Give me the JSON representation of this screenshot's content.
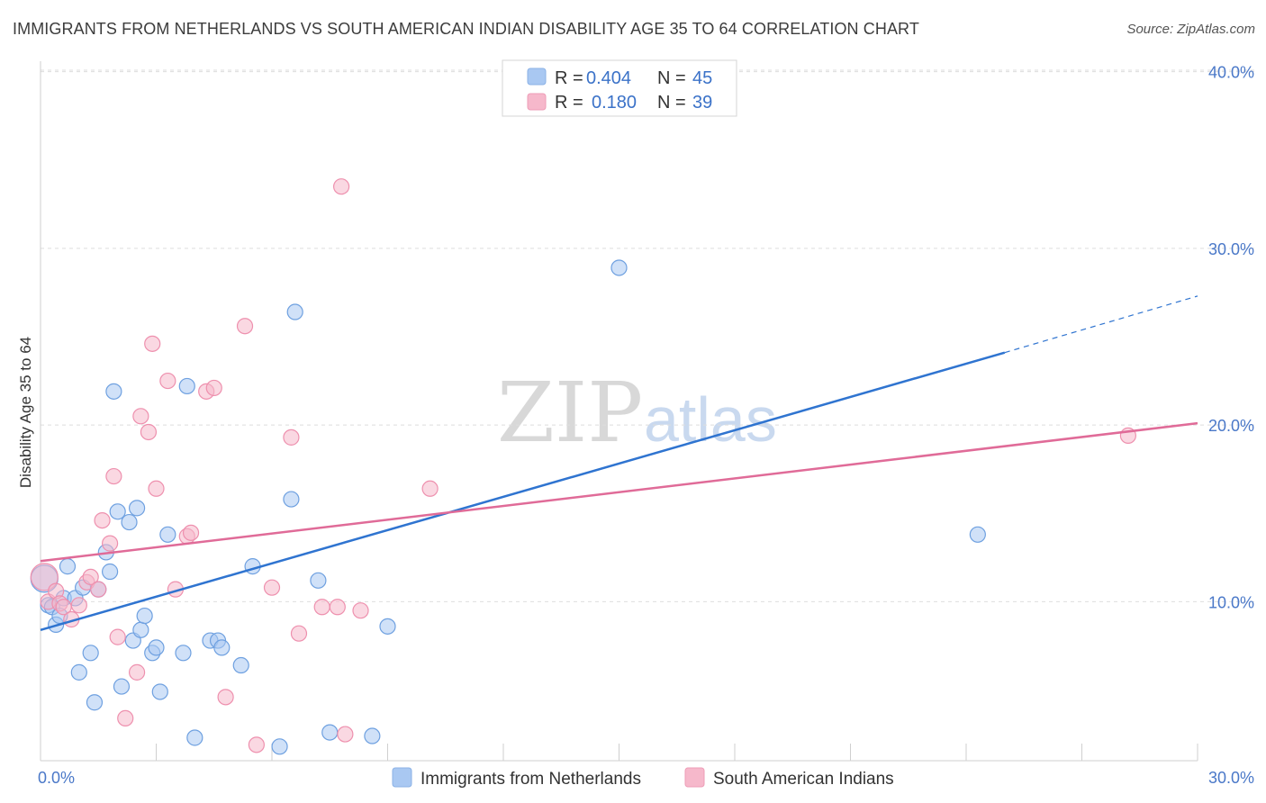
{
  "header": {
    "title": "IMMIGRANTS FROM NETHERLANDS VS SOUTH AMERICAN INDIAN DISABILITY AGE 35 TO 64 CORRELATION CHART",
    "source": "Source: ZipAtlas.com"
  },
  "watermark": {
    "zip": "ZIP",
    "atlas": "atlas"
  },
  "legend": {
    "rows": [
      {
        "r_label": "R =",
        "r_value": "0.404",
        "n_label": "N =",
        "n_value": "45",
        "color": "#a9c8f2"
      },
      {
        "r_label": "R =",
        "r_value": "0.180",
        "n_label": "N =",
        "n_value": "39",
        "color": "#f6b8cb"
      }
    ]
  },
  "bottom_legend": {
    "items": [
      {
        "label": "Immigrants from Netherlands",
        "color": "#a9c8f2"
      },
      {
        "label": "South American Indians",
        "color": "#f6b8cb"
      }
    ]
  },
  "chart_data": {
    "type": "scatter",
    "title": "IMMIGRANTS FROM NETHERLANDS VS SOUTH AMERICAN INDIAN DISABILITY AGE 35 TO 64 CORRELATION CHART",
    "xlabel": "",
    "ylabel": "Disability Age 35 to 64",
    "xlim": [
      0,
      30
    ],
    "ylim": [
      1.0,
      41.0
    ],
    "x_tick_labels": [
      "0.0%",
      "30.0%"
    ],
    "y_ticks": [
      10,
      20,
      30,
      40
    ],
    "y_tick_labels": [
      "10.0%",
      "20.0%",
      "30.0%",
      "40.0%"
    ],
    "grid": true,
    "legend_position": "top-center",
    "series": [
      {
        "name": "Immigrants from Netherlands",
        "color": "#6ea0e0",
        "fill": "#a9c8f2",
        "trend": {
          "x0": 0,
          "y0": 8.4,
          "x1": 25.0,
          "y1": 24.1,
          "dash_to_x": 30,
          "dash_to_y": 27.3,
          "color": "#2f74d0"
        },
        "points": [
          [
            0.1,
            11.3
          ],
          [
            0.2,
            9.8
          ],
          [
            0.3,
            9.7
          ],
          [
            0.4,
            8.7
          ],
          [
            0.5,
            9.2
          ],
          [
            0.6,
            10.2
          ],
          [
            0.7,
            12.0
          ],
          [
            0.9,
            10.2
          ],
          [
            1.0,
            6.0
          ],
          [
            1.1,
            10.8
          ],
          [
            1.3,
            7.1
          ],
          [
            1.4,
            4.3
          ],
          [
            1.5,
            10.7
          ],
          [
            1.7,
            12.8
          ],
          [
            1.8,
            11.7
          ],
          [
            1.9,
            21.9
          ],
          [
            2.0,
            15.1
          ],
          [
            2.1,
            5.2
          ],
          [
            2.3,
            14.5
          ],
          [
            2.4,
            7.8
          ],
          [
            2.5,
            15.3
          ],
          [
            2.6,
            8.4
          ],
          [
            2.7,
            9.2
          ],
          [
            2.9,
            7.1
          ],
          [
            3.0,
            7.4
          ],
          [
            3.1,
            4.9
          ],
          [
            3.3,
            13.8
          ],
          [
            3.7,
            7.1
          ],
          [
            3.8,
            22.2
          ],
          [
            4.0,
            2.3
          ],
          [
            4.4,
            7.8
          ],
          [
            4.6,
            7.8
          ],
          [
            4.7,
            7.4
          ],
          [
            5.2,
            6.4
          ],
          [
            5.5,
            12.0
          ],
          [
            6.2,
            1.8
          ],
          [
            6.5,
            15.8
          ],
          [
            6.6,
            26.4
          ],
          [
            7.2,
            11.2
          ],
          [
            7.5,
            2.6
          ],
          [
            8.6,
            2.4
          ],
          [
            9.0,
            8.6
          ],
          [
            15.0,
            28.9
          ],
          [
            24.3,
            13.8
          ],
          [
            17.3,
            39.5
          ]
        ]
      },
      {
        "name": "South American Indians",
        "color": "#ee90ae",
        "fill": "#f6b8cb",
        "trend": {
          "x0": 0,
          "y0": 12.3,
          "x1": 30,
          "y1": 20.1,
          "color": "#e06b98"
        },
        "points": [
          [
            0.1,
            11.4
          ],
          [
            0.2,
            10.0
          ],
          [
            0.4,
            10.6
          ],
          [
            0.5,
            9.9
          ],
          [
            0.6,
            9.7
          ],
          [
            0.8,
            9.0
          ],
          [
            1.0,
            9.8
          ],
          [
            1.2,
            11.1
          ],
          [
            1.3,
            11.4
          ],
          [
            1.5,
            10.7
          ],
          [
            1.6,
            14.6
          ],
          [
            1.8,
            13.3
          ],
          [
            1.9,
            17.1
          ],
          [
            2.0,
            8.0
          ],
          [
            2.2,
            3.4
          ],
          [
            2.5,
            6.0
          ],
          [
            2.6,
            20.5
          ],
          [
            2.8,
            19.6
          ],
          [
            2.9,
            24.6
          ],
          [
            3.0,
            16.4
          ],
          [
            3.3,
            22.5
          ],
          [
            3.5,
            10.7
          ],
          [
            3.8,
            13.7
          ],
          [
            3.9,
            13.9
          ],
          [
            4.3,
            21.9
          ],
          [
            4.5,
            22.1
          ],
          [
            4.8,
            4.6
          ],
          [
            5.3,
            25.6
          ],
          [
            5.6,
            1.9
          ],
          [
            6.0,
            10.8
          ],
          [
            6.5,
            19.3
          ],
          [
            6.7,
            8.2
          ],
          [
            7.3,
            9.7
          ],
          [
            7.7,
            9.7
          ],
          [
            7.8,
            33.5
          ],
          [
            7.9,
            2.5
          ],
          [
            8.3,
            9.5
          ],
          [
            10.1,
            16.4
          ],
          [
            28.2,
            19.4
          ]
        ]
      }
    ]
  }
}
